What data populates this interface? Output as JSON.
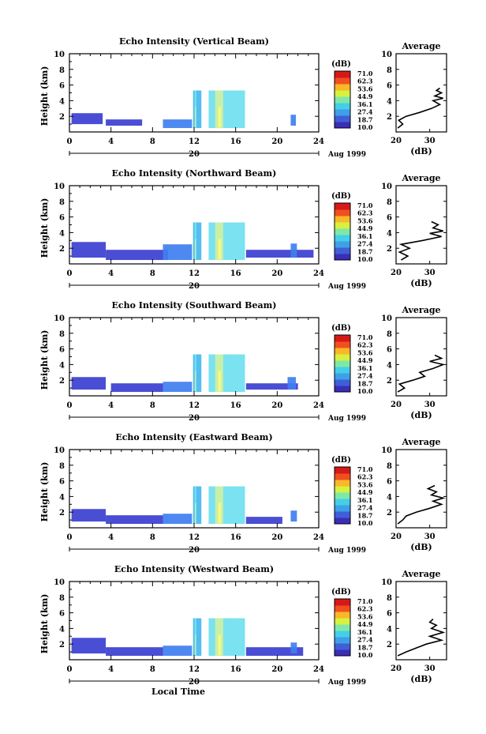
{
  "figure": {
    "x_axis_label": "Local Time",
    "date_label": "Aug 1999",
    "day_label": "20",
    "colorbar_unit": "(dB)",
    "colorbar_ticks": [
      "71.0",
      "62.3",
      "53.6",
      "44.9",
      "36.1",
      "27.4",
      "18.7",
      "10.0"
    ],
    "colorbar_colors": [
      "#3b2db8",
      "#3f5fd6",
      "#3f9fe8",
      "#43cfe8",
      "#7fe8a8",
      "#d8f040",
      "#f8b828",
      "#f05020",
      "#d81818"
    ],
    "echo_colors": [
      "#3b3fd0",
      "#3f7ff0",
      "#47b7f0",
      "#6fe0f0",
      "#c8f0a8",
      "#f8f880"
    ]
  },
  "chart_data": [
    {
      "type": "heatmap",
      "title": "Echo Intensity (Vertical Beam)",
      "ylabel": "Height (km)",
      "xlim": [
        0,
        24
      ],
      "ylim": [
        0,
        10
      ],
      "x_ticks": [
        0,
        4,
        8,
        12,
        16,
        20,
        24
      ],
      "y_ticks": [
        2,
        4,
        6,
        8,
        10
      ],
      "colorbar_range_db": [
        10.0,
        71.0
      ],
      "echo_regions": [
        {
          "t_start": 0.2,
          "t_end": 3.2,
          "h_low": 1.0,
          "h_high": 2.4,
          "level": 0
        },
        {
          "t_start": 3.5,
          "t_end": 7.0,
          "h_low": 0.8,
          "h_high": 1.6,
          "level": 0
        },
        {
          "t_start": 9.0,
          "t_end": 11.8,
          "h_low": 0.5,
          "h_high": 1.6,
          "level": 1
        },
        {
          "t_start": 11.9,
          "t_end": 12.7,
          "h_low": 0.5,
          "h_high": 5.3,
          "level": 2
        },
        {
          "t_start": 13.4,
          "t_end": 16.9,
          "h_low": 0.5,
          "h_high": 5.3,
          "level": 3
        },
        {
          "t_start": 21.3,
          "t_end": 21.8,
          "h_low": 0.8,
          "h_high": 2.2,
          "level": 1
        }
      ],
      "average_profile": {
        "title": "Average",
        "xlabel": "(dB)",
        "xlim": [
          20,
          35
        ],
        "x_ticks": [
          20,
          30
        ],
        "ylim": [
          0,
          10
        ],
        "x_db": [
          20.5,
          22.0,
          20.8,
          23.0,
          27.0,
          30.5,
          33.0,
          31.0,
          34.0,
          31.5,
          33.5,
          32.0,
          33.0
        ],
        "height_km": [
          0.5,
          1.0,
          1.5,
          2.0,
          2.5,
          3.0,
          3.5,
          4.0,
          4.3,
          4.6,
          5.0,
          5.3,
          5.6
        ]
      }
    },
    {
      "type": "heatmap",
      "title": "Echo Intensity (Northward Beam)",
      "ylabel": "Height (km)",
      "xlim": [
        0,
        24
      ],
      "ylim": [
        0,
        10
      ],
      "x_ticks": [
        0,
        4,
        8,
        12,
        16,
        20,
        24
      ],
      "y_ticks": [
        2,
        4,
        6,
        8,
        10
      ],
      "colorbar_range_db": [
        10.0,
        71.0
      ],
      "echo_regions": [
        {
          "t_start": 0.2,
          "t_end": 3.5,
          "h_low": 0.8,
          "h_high": 2.8,
          "level": 0
        },
        {
          "t_start": 3.5,
          "t_end": 9.5,
          "h_low": 0.5,
          "h_high": 1.8,
          "level": 0
        },
        {
          "t_start": 9.0,
          "t_end": 11.8,
          "h_low": 0.5,
          "h_high": 2.5,
          "level": 1
        },
        {
          "t_start": 11.9,
          "t_end": 12.7,
          "h_low": 0.5,
          "h_high": 5.3,
          "level": 2
        },
        {
          "t_start": 13.4,
          "t_end": 16.9,
          "h_low": 0.5,
          "h_high": 5.3,
          "level": 3
        },
        {
          "t_start": 17.0,
          "t_end": 23.5,
          "h_low": 0.8,
          "h_high": 1.8,
          "level": 0
        },
        {
          "t_start": 21.3,
          "t_end": 21.9,
          "h_low": 0.8,
          "h_high": 2.6,
          "level": 1
        }
      ],
      "average_profile": {
        "title": "Average",
        "xlabel": "(dB)",
        "xlim": [
          20,
          35
        ],
        "x_ticks": [
          20,
          30
        ],
        "ylim": [
          0,
          10
        ],
        "x_db": [
          21.5,
          23.5,
          21.0,
          24.0,
          21.5,
          28.0,
          33.5,
          30.0,
          34.0,
          31.0,
          32.5,
          30.5
        ],
        "height_km": [
          0.5,
          1.0,
          1.5,
          2.0,
          2.5,
          3.0,
          3.5,
          3.9,
          4.2,
          4.6,
          5.0,
          5.4
        ]
      }
    },
    {
      "type": "heatmap",
      "title": "Echo Intensity (Southward Beam)",
      "ylabel": "Height (km)",
      "xlim": [
        0,
        24
      ],
      "ylim": [
        0,
        10
      ],
      "x_ticks": [
        0,
        4,
        8,
        12,
        16,
        20,
        24
      ],
      "y_ticks": [
        2,
        4,
        6,
        8,
        10
      ],
      "colorbar_range_db": [
        10.0,
        71.0
      ],
      "echo_regions": [
        {
          "t_start": 0.2,
          "t_end": 3.5,
          "h_low": 0.8,
          "h_high": 2.4,
          "level": 0
        },
        {
          "t_start": 4.0,
          "t_end": 9.0,
          "h_low": 0.5,
          "h_high": 1.6,
          "level": 0
        },
        {
          "t_start": 9.0,
          "t_end": 11.8,
          "h_low": 0.5,
          "h_high": 1.8,
          "level": 1
        },
        {
          "t_start": 11.9,
          "t_end": 12.7,
          "h_low": 0.5,
          "h_high": 5.3,
          "level": 2
        },
        {
          "t_start": 13.4,
          "t_end": 16.9,
          "h_low": 0.5,
          "h_high": 5.3,
          "level": 3
        },
        {
          "t_start": 17.0,
          "t_end": 22.0,
          "h_low": 0.8,
          "h_high": 1.6,
          "level": 0
        },
        {
          "t_start": 21.0,
          "t_end": 21.8,
          "h_low": 0.8,
          "h_high": 2.4,
          "level": 1
        }
      ],
      "average_profile": {
        "title": "Average",
        "xlabel": "(dB)",
        "xlim": [
          20,
          35
        ],
        "x_ticks": [
          20,
          30
        ],
        "ylim": [
          0,
          10
        ],
        "x_db": [
          20.5,
          22.5,
          21.0,
          25.0,
          28.5,
          27.0,
          31.0,
          34.0,
          30.0,
          33.5,
          31.5
        ],
        "height_km": [
          0.5,
          1.0,
          1.5,
          2.0,
          2.5,
          3.0,
          3.5,
          4.0,
          4.4,
          4.8,
          5.2
        ]
      }
    },
    {
      "type": "heatmap",
      "title": "Echo Intensity (Eastward Beam)",
      "ylabel": "Height (km)",
      "xlim": [
        0,
        24
      ],
      "ylim": [
        0,
        10
      ],
      "x_ticks": [
        0,
        4,
        8,
        12,
        16,
        20,
        24
      ],
      "y_ticks": [
        2,
        4,
        6,
        8,
        10
      ],
      "colorbar_range_db": [
        10.0,
        71.0
      ],
      "echo_regions": [
        {
          "t_start": 0.2,
          "t_end": 3.5,
          "h_low": 0.8,
          "h_high": 2.4,
          "level": 0
        },
        {
          "t_start": 3.5,
          "t_end": 9.0,
          "h_low": 0.5,
          "h_high": 1.6,
          "level": 0
        },
        {
          "t_start": 9.0,
          "t_end": 11.8,
          "h_low": 0.5,
          "h_high": 1.8,
          "level": 1
        },
        {
          "t_start": 11.9,
          "t_end": 12.7,
          "h_low": 0.5,
          "h_high": 5.3,
          "level": 2
        },
        {
          "t_start": 13.4,
          "t_end": 16.9,
          "h_low": 0.5,
          "h_high": 5.3,
          "level": 3
        },
        {
          "t_start": 17.0,
          "t_end": 20.5,
          "h_low": 0.5,
          "h_high": 1.4,
          "level": 0
        },
        {
          "t_start": 21.3,
          "t_end": 21.9,
          "h_low": 0.8,
          "h_high": 2.2,
          "level": 1
        }
      ],
      "average_profile": {
        "title": "Average",
        "xlabel": "(dB)",
        "xlim": [
          20,
          35
        ],
        "x_ticks": [
          20,
          30
        ],
        "ylim": [
          0,
          10
        ],
        "x_db": [
          20.5,
          22.0,
          23.0,
          26.0,
          30.0,
          33.5,
          31.0,
          34.0,
          30.5,
          32.0,
          29.5,
          31.5
        ],
        "height_km": [
          0.5,
          1.0,
          1.5,
          2.0,
          2.5,
          3.0,
          3.4,
          3.8,
          4.2,
          4.6,
          5.0,
          5.4
        ]
      }
    },
    {
      "type": "heatmap",
      "title": "Echo Intensity (Westward Beam)",
      "ylabel": "Height (km)",
      "xlim": [
        0,
        24
      ],
      "ylim": [
        0,
        10
      ],
      "x_ticks": [
        0,
        4,
        8,
        12,
        16,
        20,
        24
      ],
      "y_ticks": [
        2,
        4,
        6,
        8,
        10
      ],
      "colorbar_range_db": [
        10.0,
        71.0
      ],
      "echo_regions": [
        {
          "t_start": 0.2,
          "t_end": 3.5,
          "h_low": 0.8,
          "h_high": 2.8,
          "level": 0
        },
        {
          "t_start": 3.5,
          "t_end": 9.0,
          "h_low": 0.5,
          "h_high": 1.6,
          "level": 0
        },
        {
          "t_start": 9.0,
          "t_end": 11.8,
          "h_low": 0.5,
          "h_high": 1.8,
          "level": 1
        },
        {
          "t_start": 11.9,
          "t_end": 12.7,
          "h_low": 0.5,
          "h_high": 5.3,
          "level": 2
        },
        {
          "t_start": 13.4,
          "t_end": 16.9,
          "h_low": 0.5,
          "h_high": 5.3,
          "level": 3
        },
        {
          "t_start": 17.0,
          "t_end": 22.5,
          "h_low": 0.5,
          "h_high": 1.6,
          "level": 0
        },
        {
          "t_start": 21.3,
          "t_end": 21.9,
          "h_low": 0.8,
          "h_high": 2.2,
          "level": 1
        }
      ],
      "average_profile": {
        "title": "Average",
        "xlabel": "(dB)",
        "xlim": [
          20,
          35
        ],
        "x_ticks": [
          20,
          30
        ],
        "ylim": [
          0,
          10
        ],
        "x_db": [
          20.5,
          23.0,
          26.0,
          29.0,
          33.5,
          30.0,
          34.0,
          30.5,
          32.0,
          30.0,
          31.0
        ],
        "height_km": [
          0.5,
          1.0,
          1.5,
          2.0,
          2.5,
          3.0,
          3.5,
          4.0,
          4.4,
          4.8,
          5.2
        ]
      }
    }
  ]
}
